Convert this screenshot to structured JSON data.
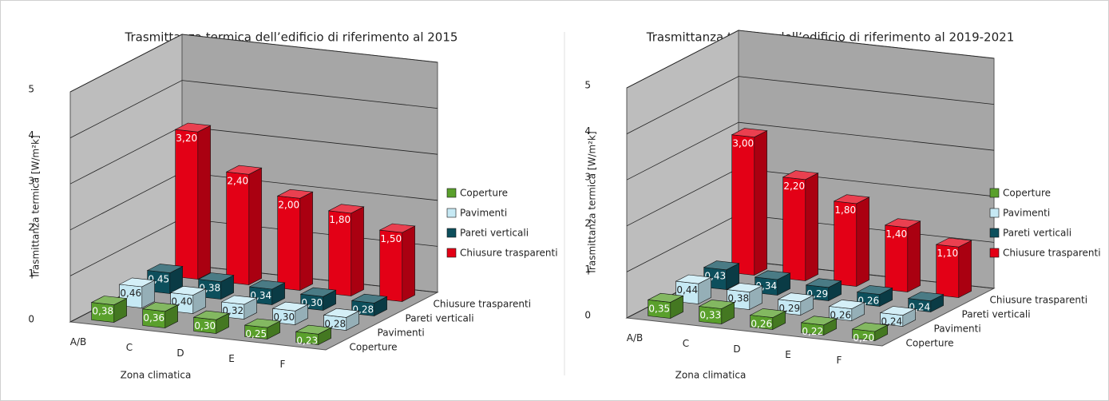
{
  "chart_data": [
    {
      "type": "bar",
      "title": "Trasmittanza termica dell’edificio di riferimento al 2015",
      "y_label": "Trasmittanza termica [W/m²k]",
      "x_label": "Zona climatica",
      "categories": [
        "A/B",
        "C",
        "D",
        "E",
        "F"
      ],
      "series": [
        {
          "name": "Coperture",
          "color": "#5aa02c",
          "values": [
            0.38,
            0.36,
            0.3,
            0.25,
            0.23
          ],
          "value_labels": [
            "0,38",
            "0,36",
            "0,30",
            "0,25",
            "0,23"
          ]
        },
        {
          "name": "Pavimenti",
          "color": "#c6e9f4",
          "values": [
            0.46,
            0.4,
            0.32,
            0.3,
            0.28
          ],
          "value_labels": [
            "0,46",
            "0,40",
            "0,32",
            "0,30",
            "0,28"
          ]
        },
        {
          "name": "Pareti verticali",
          "color": "#0d4f5c",
          "values": [
            0.45,
            0.38,
            0.34,
            0.3,
            0.28
          ],
          "value_labels": [
            "0,45",
            "0,38",
            "0,34",
            "0,30",
            "0,28"
          ]
        },
        {
          "name": "Chiusure trasparenti",
          "color": "#e30016",
          "values": [
            3.2,
            2.4,
            2.0,
            1.8,
            1.5
          ],
          "value_labels": [
            "3,20",
            "2,40",
            "2,00",
            "1,80",
            "1,50"
          ]
        }
      ],
      "ylim": [
        0,
        5
      ],
      "yticks": [
        0,
        1,
        2,
        3,
        4,
        5
      ],
      "grid": true
    },
    {
      "type": "bar",
      "title": "Trasmittanza termica dell’edificio di riferimento al 2019-2021",
      "y_label": "Trasmittanza termica [W/m²k]",
      "x_label": "Zona climatica",
      "categories": [
        "A/B",
        "C",
        "D",
        "E",
        "F"
      ],
      "series": [
        {
          "name": "Coperture",
          "color": "#5aa02c",
          "values": [
            0.35,
            0.33,
            0.26,
            0.22,
            0.2
          ],
          "value_labels": [
            "0,35",
            "0,33",
            "0,26",
            "0,22",
            "0,20"
          ]
        },
        {
          "name": "Pavimenti",
          "color": "#c6e9f4",
          "values": [
            0.44,
            0.38,
            0.29,
            0.26,
            0.24
          ],
          "value_labels": [
            "0,44",
            "0,38",
            "0,29",
            "0,26",
            "0,24"
          ]
        },
        {
          "name": "Pareti verticali",
          "color": "#0d4f5c",
          "values": [
            0.43,
            0.34,
            0.29,
            0.26,
            0.24
          ],
          "value_labels": [
            "0,43",
            "0,34",
            "0,29",
            "0,26",
            "0,24"
          ]
        },
        {
          "name": "Chiusure trasparenti",
          "color": "#e30016",
          "values": [
            3.0,
            2.2,
            1.8,
            1.4,
            1.1
          ],
          "value_labels": [
            "3,00",
            "2,20",
            "1,80",
            "1,40",
            "1,10"
          ]
        }
      ],
      "ylim": [
        0,
        5
      ],
      "yticks": [
        0,
        1,
        2,
        3,
        4,
        5
      ],
      "grid": true
    }
  ]
}
